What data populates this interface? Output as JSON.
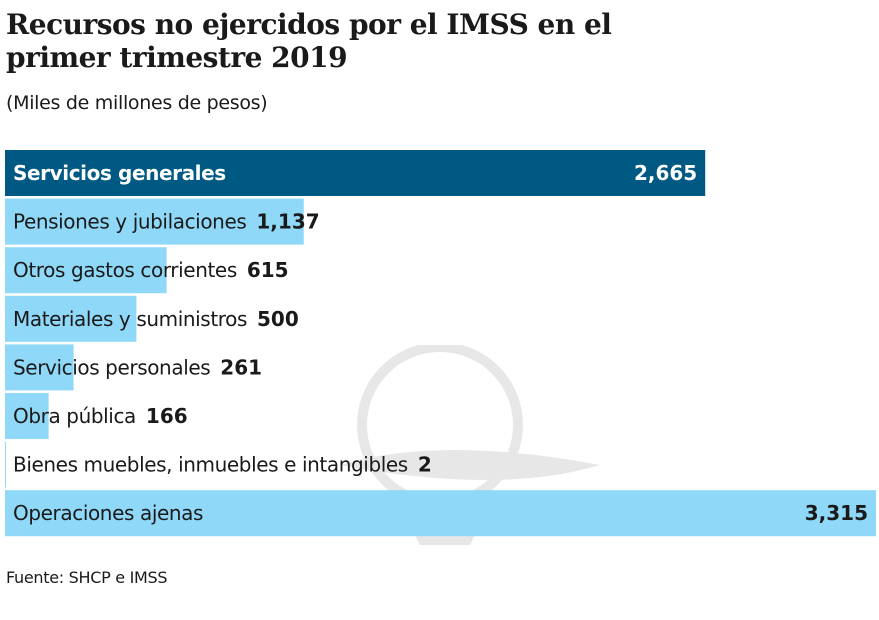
{
  "chart_data": {
    "type": "bar",
    "orientation": "horizontal",
    "title": "Recursos no ejercidos por el IMSS en el primer trimestre 2019",
    "subtitle": "(Miles de millones de pesos)",
    "categories": [
      "Servicios generales",
      "Pensiones y jubilaciones",
      "Otros gastos corrientes",
      "Materiales y suministros",
      "Servicios personales",
      "Obra pública",
      "Bienes muebles, inmuebles e intangibles",
      "Operaciones ajenas"
    ],
    "values": [
      2665,
      1137,
      615,
      500,
      261,
      166,
      2,
      3315
    ],
    "value_labels": [
      "2,665",
      "1,137",
      "615",
      "500",
      "261",
      "166",
      "2",
      "3,315"
    ],
    "highlight_index": 0,
    "colors": {
      "highlight": "#005983",
      "bar": "#8fd8f7",
      "highlight_text": "#ffffff",
      "text": "#1a1a1a"
    },
    "xlim": [
      0,
      3315
    ],
    "grid": false,
    "source": "Fuente: SHCP e IMSS"
  }
}
